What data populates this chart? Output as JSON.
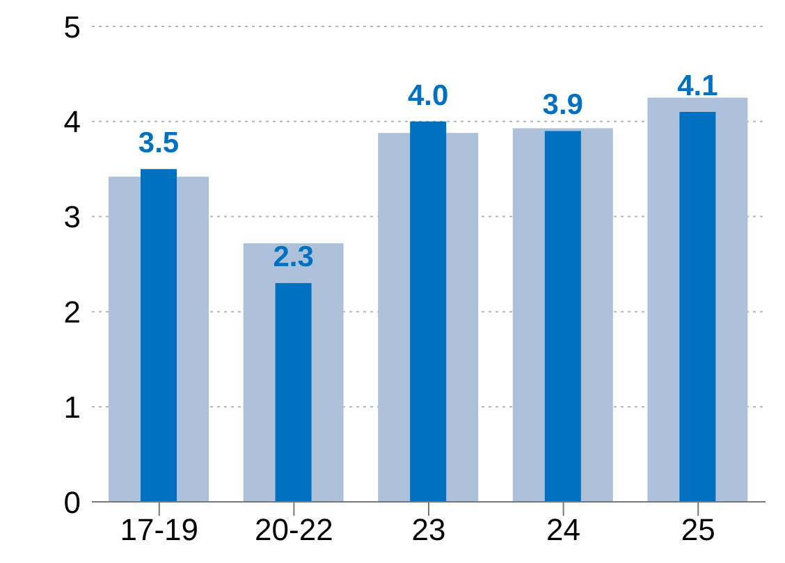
{
  "chart_data": {
    "type": "bar",
    "categories": [
      "17-19",
      "20-22",
      "23",
      "24",
      "25"
    ],
    "series": [
      {
        "color": "#adc2da",
        "values": [
          3.42,
          2.72,
          3.88,
          3.93,
          4.25
        ]
      },
      {
        "color": "#0070c0",
        "values": [
          3.5,
          2.3,
          4.0,
          3.9,
          4.1
        ],
        "value_labels": [
          "3.5",
          "2.3",
          "4.0",
          "3.9",
          "4.1"
        ]
      }
    ],
    "ylim": [
      0,
      5
    ],
    "yticks": [
      0,
      1,
      2,
      3,
      4,
      5
    ],
    "grid": "y",
    "legend": false
  }
}
